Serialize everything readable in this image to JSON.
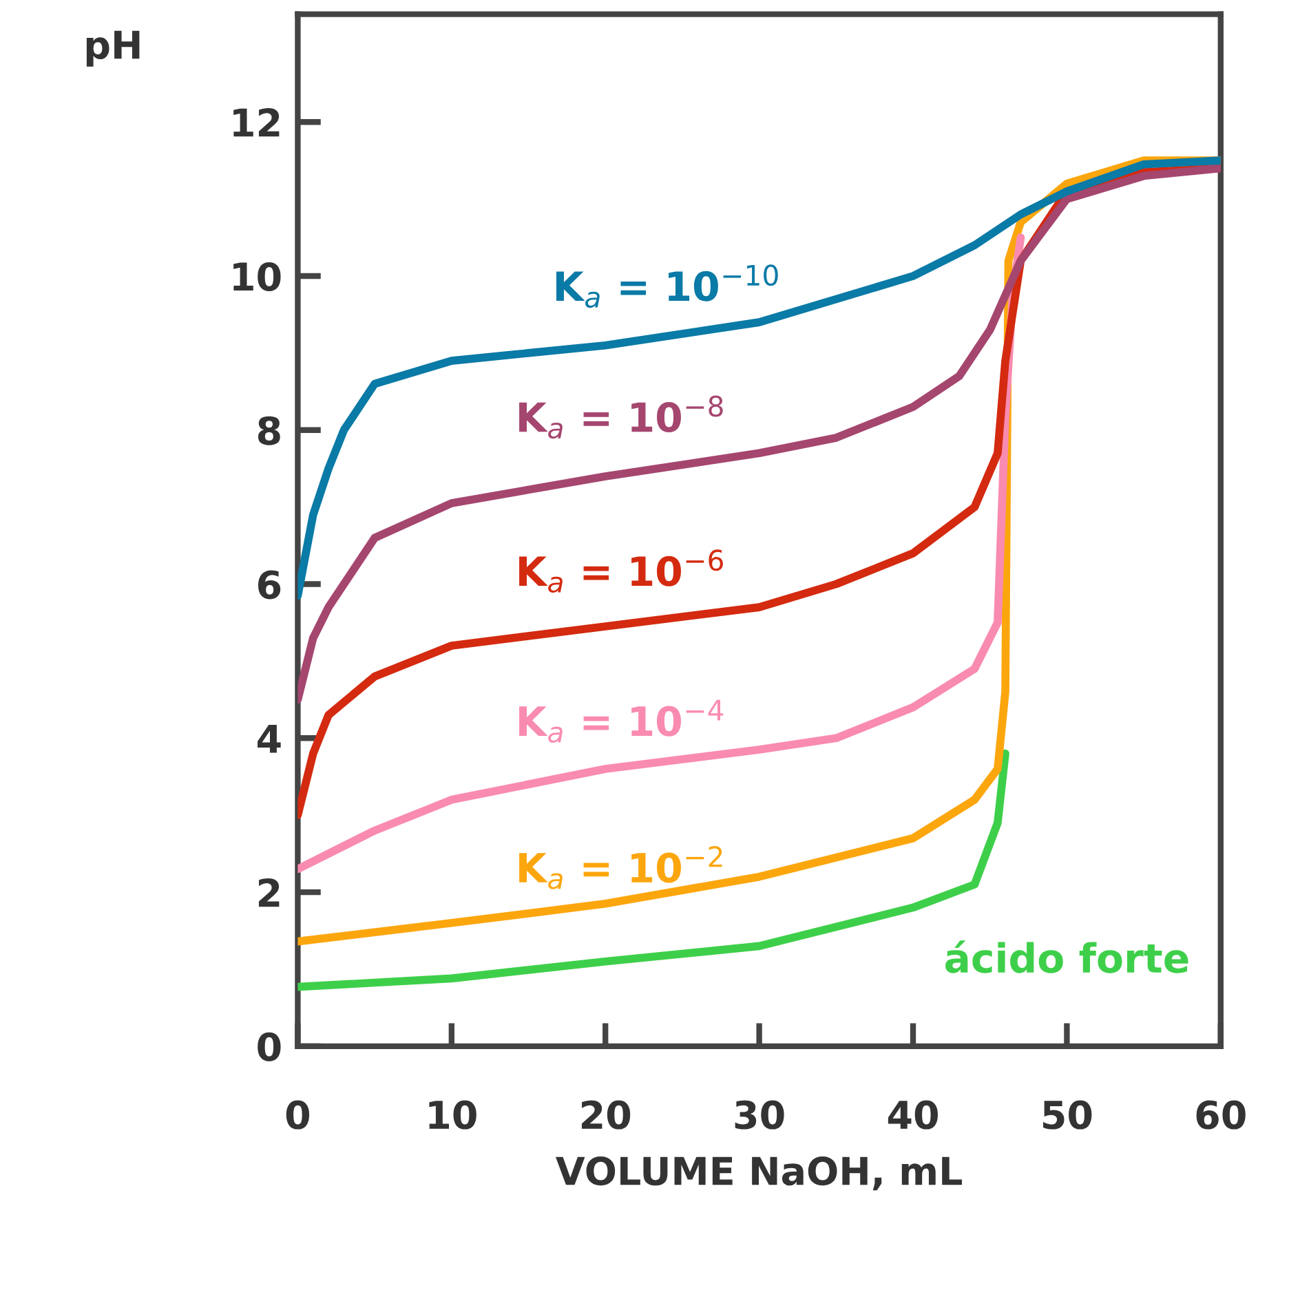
{
  "chart_data": {
    "type": "line",
    "xlabel": "VOLUME NaOH, mL",
    "ylabel": "pH",
    "xlim": [
      0,
      60
    ],
    "xticks": [
      0,
      10,
      20,
      30,
      40,
      50,
      60
    ],
    "ylim": [
      0,
      13.4
    ],
    "yticks": [
      0,
      2,
      4,
      6,
      8,
      10,
      12
    ],
    "grid": false,
    "legend": false,
    "marker": "none",
    "line_style": "solid",
    "series": [
      {
        "name": "K$_{a}$ = 10$^{−10}$",
        "color": "#0a7aa6",
        "x": [
          0,
          1,
          2,
          3,
          5,
          10,
          20,
          30,
          40,
          44,
          47,
          50,
          55,
          60
        ],
        "values": [
          5.85,
          6.9,
          7.5,
          8.0,
          8.6,
          8.9,
          9.1,
          9.4,
          10.0,
          10.4,
          10.8,
          11.1,
          11.45,
          11.5
        ]
      },
      {
        "name": "K$_{a}$ = 10$^{−8}$",
        "color": "#a5466f",
        "x": [
          0,
          1,
          2,
          5,
          10,
          20,
          30,
          35,
          40,
          43,
          45,
          47,
          50,
          55,
          60
        ],
        "values": [
          4.5,
          5.3,
          5.7,
          6.6,
          7.05,
          7.4,
          7.7,
          7.9,
          8.3,
          8.7,
          9.3,
          10.2,
          11.0,
          11.3,
          11.4
        ]
      },
      {
        "name": "K$_{a}$ = 10$^{−6}$",
        "color": "#d42a10",
        "x": [
          0,
          1,
          2,
          5,
          10,
          20,
          30,
          35,
          40,
          44,
          45.5,
          46,
          47,
          50,
          55,
          60
        ],
        "values": [
          3.0,
          3.8,
          4.3,
          4.8,
          5.2,
          5.45,
          5.7,
          6.0,
          6.4,
          7.0,
          7.7,
          8.9,
          10.2,
          11.1,
          11.35,
          11.4
        ]
      },
      {
        "name": "K$_{a}$ = 10$^{−4}$",
        "color": "#f98bb0",
        "x": [
          0,
          5,
          10,
          20,
          30,
          35,
          40,
          44,
          45.5,
          46,
          46.5,
          47
        ],
        "values": [
          2.3,
          2.8,
          3.2,
          3.6,
          3.85,
          4.0,
          4.4,
          4.9,
          5.5,
          8.2,
          9.8,
          10.5
        ]
      },
      {
        "name": "K$_{a}$ = 10$^{−2}$",
        "color": "#fca60e",
        "x": [
          0,
          10,
          20,
          30,
          40,
          44,
          45.5,
          46,
          46.2,
          47,
          50,
          55,
          60
        ],
        "values": [
          1.36,
          1.6,
          1.85,
          2.2,
          2.7,
          3.2,
          3.6,
          4.6,
          10.2,
          10.7,
          11.2,
          11.5,
          11.5
        ]
      },
      {
        "name": "ácido forte",
        "color": "#3ecf4a",
        "x": [
          0,
          10,
          20,
          30,
          40,
          44,
          45.5,
          46
        ],
        "values": [
          0.77,
          0.88,
          1.1,
          1.3,
          1.8,
          2.1,
          2.9,
          3.8
        ]
      }
    ]
  }
}
